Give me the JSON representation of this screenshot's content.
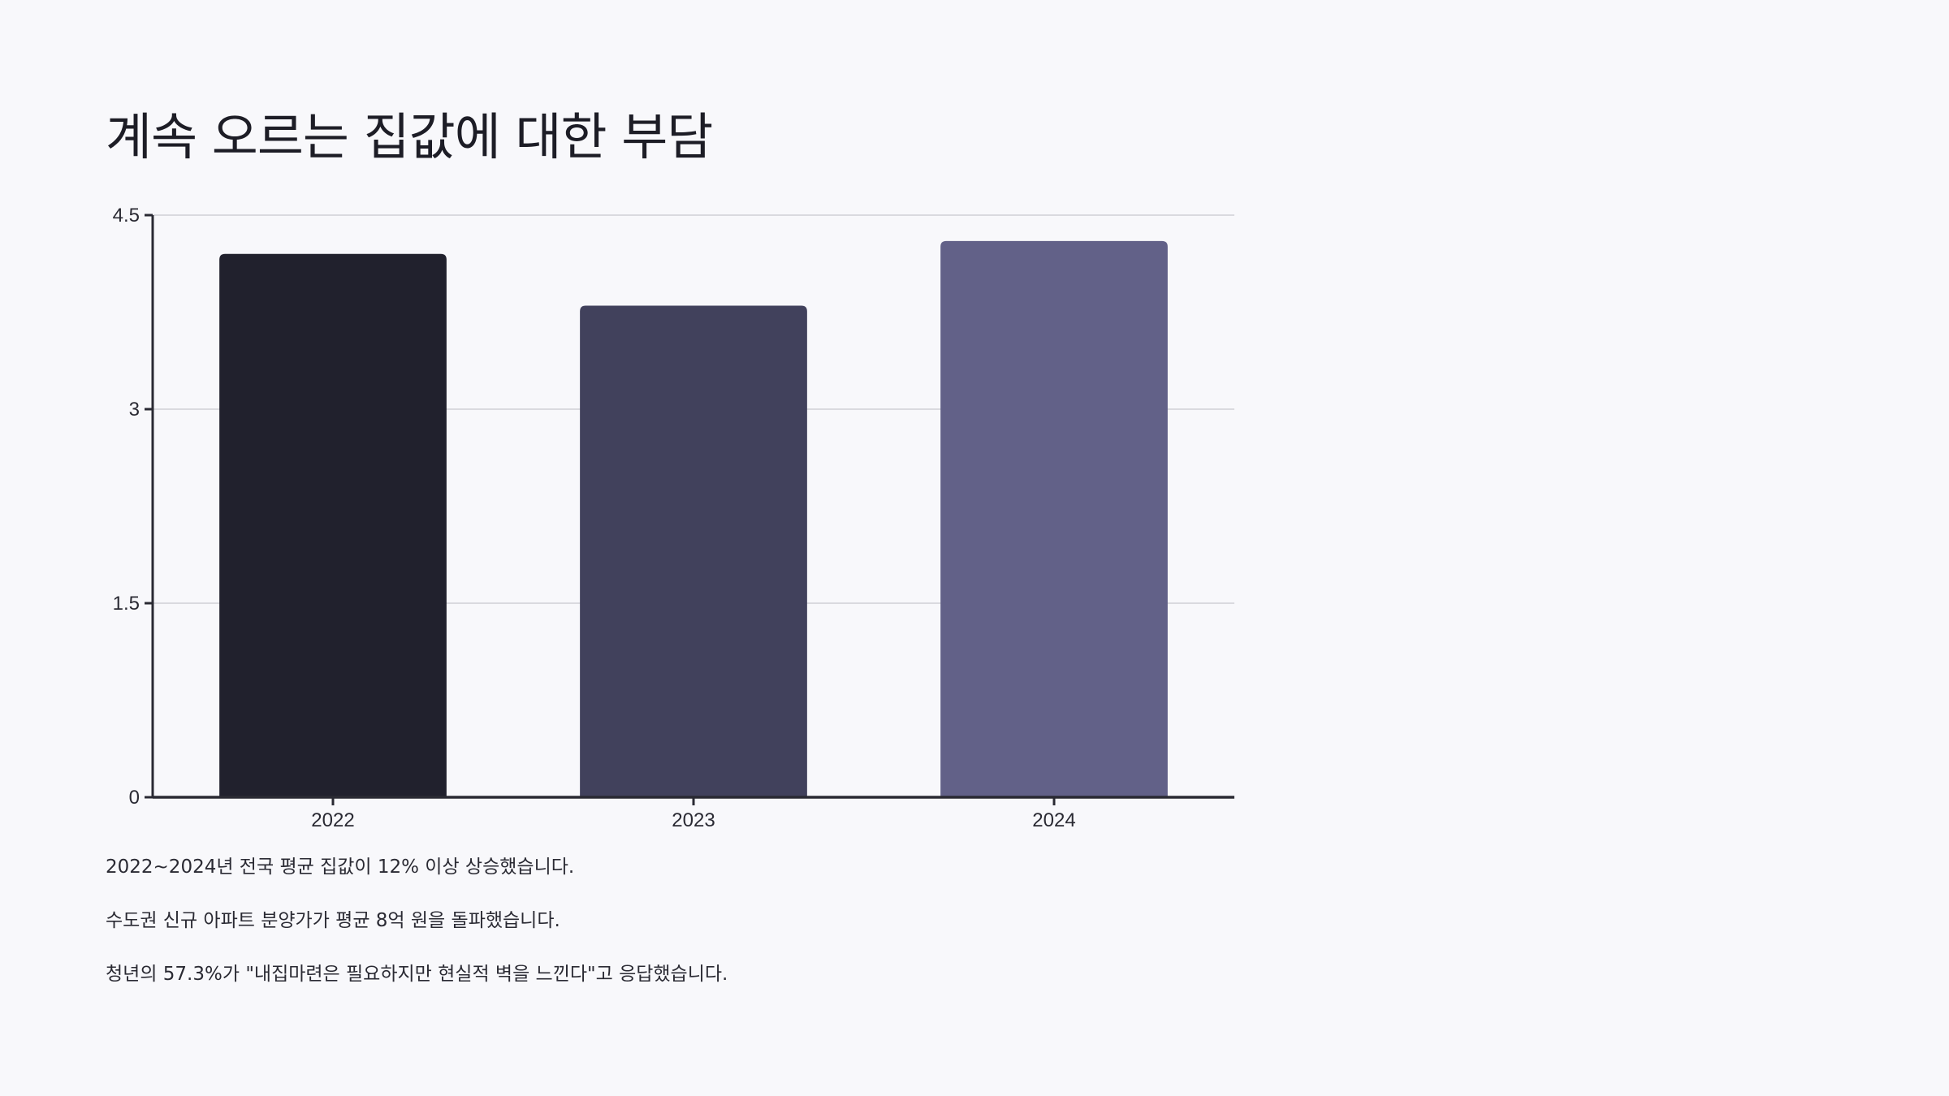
{
  "title": "계속 오르는 집값에 대한 부담",
  "chart_data": {
    "type": "bar",
    "categories": [
      "2022",
      "2023",
      "2024"
    ],
    "values": [
      4.2,
      3.8,
      4.3
    ],
    "ylim": [
      0,
      4.5
    ],
    "yticks": [
      0,
      1.5,
      3,
      4.5
    ],
    "ytick_labels": [
      "0",
      "1.5",
      "3",
      "4.5"
    ],
    "grid": true,
    "title": "",
    "xlabel": "",
    "ylabel": "",
    "colors": [
      "#21212d",
      "#41415c",
      "#626188"
    ]
  },
  "notes": [
    "2022~2024년 전국 평균 집값이 12% 이상 상승했습니다.",
    "수도권 신규 아파트 분양가가 평균 8억 원을 돌파했습니다.",
    "청년의 57.3%가 \"내집마련은 필요하지만 현실적 벽을 느낀다\"고 응답했습니다."
  ]
}
